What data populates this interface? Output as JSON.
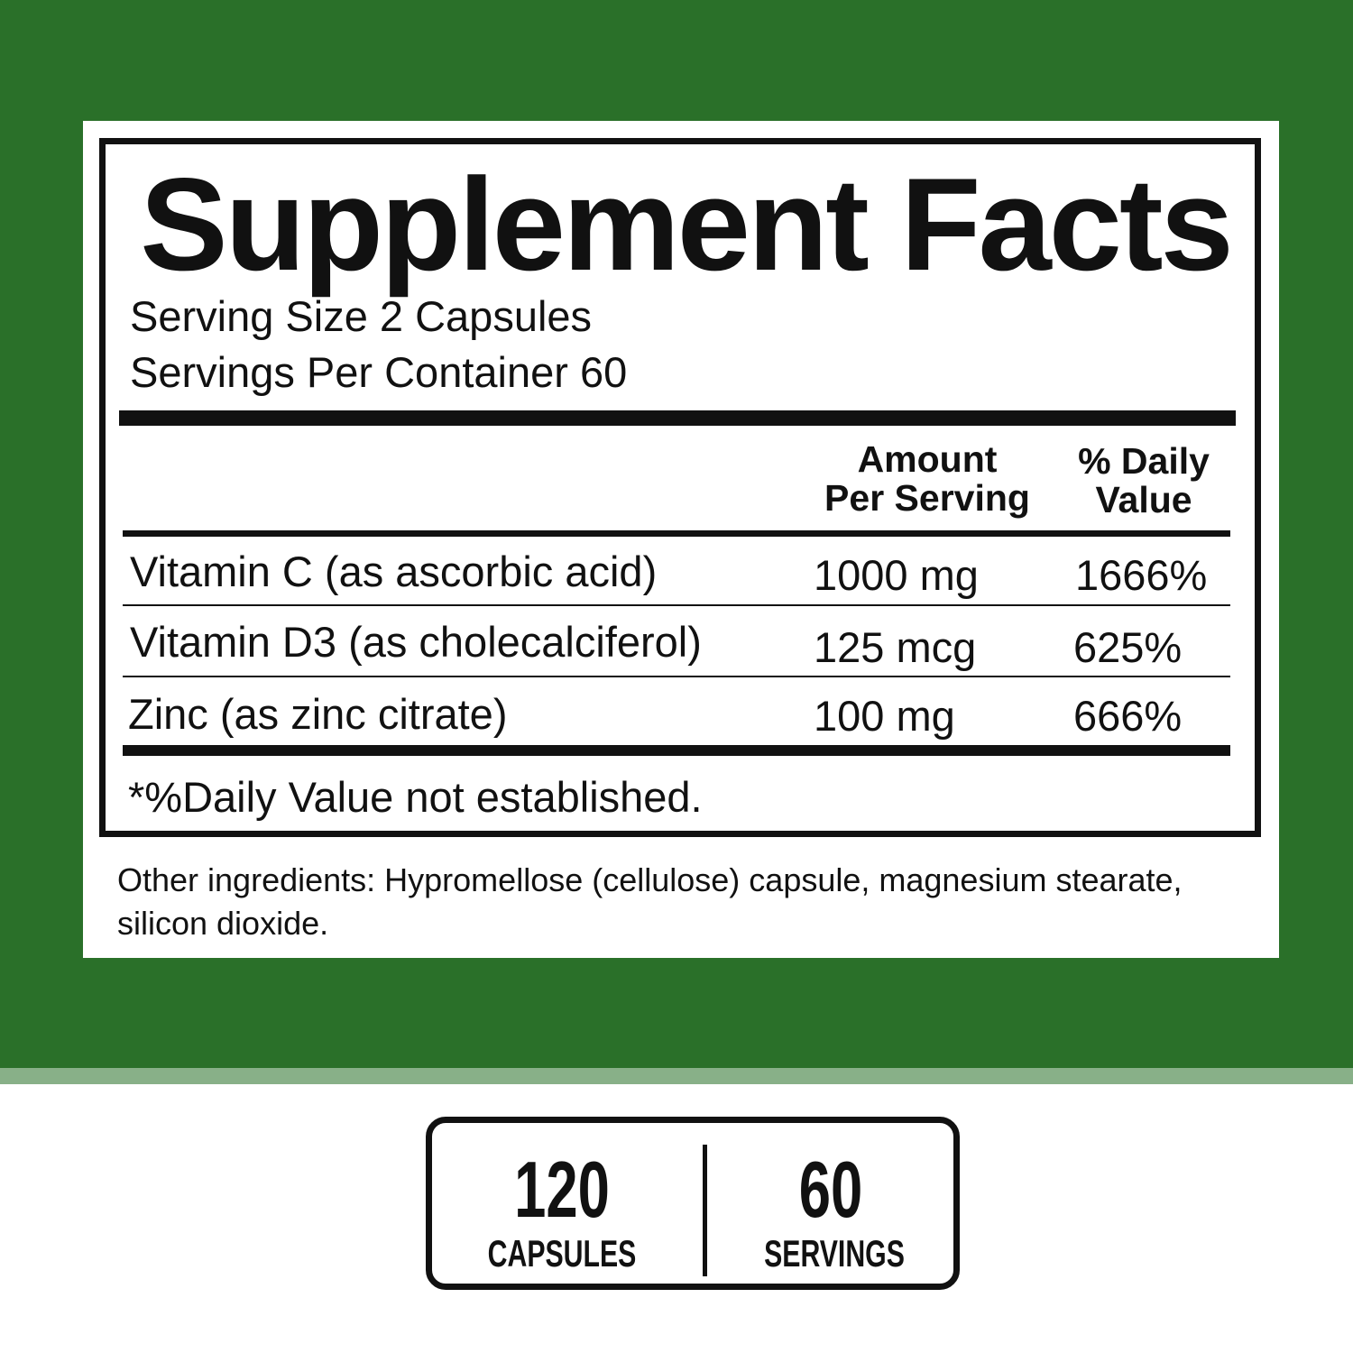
{
  "colors": {
    "background_green": "#2a7029",
    "strip": "#88b088"
  },
  "label": {
    "title": "Supplement Facts",
    "serving_size": "Serving Size 2 Capsules",
    "servings_per_container": "Servings Per Container 60",
    "header_amount_line1": "Amount",
    "header_amount_line2": "Per Serving",
    "header_dv_line1": "% Daily",
    "header_dv_line2": "Value",
    "rows": [
      {
        "name": "Vitamin C (as ascorbic acid)",
        "amount": "1000 mg",
        "dv": "1666%"
      },
      {
        "name": "Vitamin D3 (as cholecalciferol)",
        "amount": "125 mcg",
        "dv": "625%"
      },
      {
        "name": "Zinc (as zinc citrate)",
        "amount": "100 mg",
        "dv": "666%"
      }
    ],
    "footnote": "*%Daily Value not established.",
    "other_ingredients": "Other ingredients: Hypromellose (cellulose) capsule, magnesium stearate, silicon dioxide."
  },
  "summary": {
    "capsules_count": "120",
    "capsules_label": "CAPSULES",
    "servings_count": "60",
    "servings_label": "SERVINGS"
  }
}
